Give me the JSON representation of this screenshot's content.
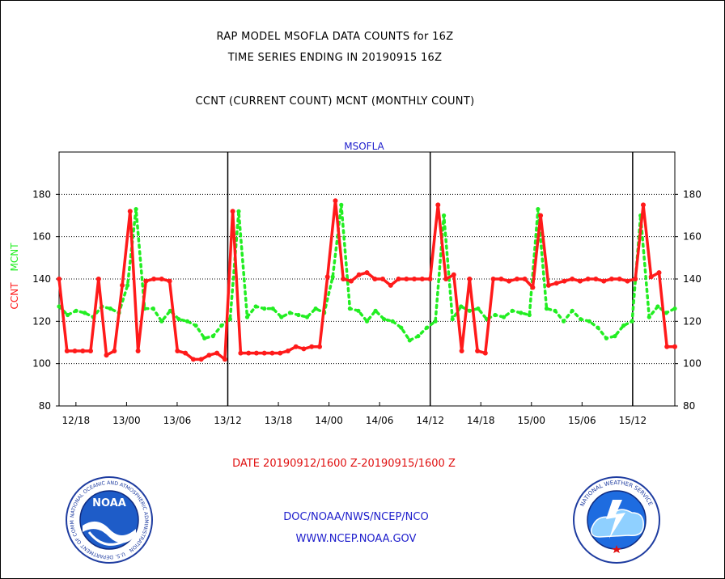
{
  "header": {
    "line1": "RAP MODEL MSOFLA DATA COUNTS for 16Z",
    "line2": "TIME SERIES ENDING IN 20190915 16Z",
    "line3": "CCNT (CURRENT COUNT) MCNT (MONTHLY COUNT)"
  },
  "footer": {
    "date_range": "DATE 20190912/1600 Z-20190915/1600 Z",
    "org_line": "DOC/NOAA/NWS/NCEP/NCO",
    "url_line": "WWW.NCEP.NOAA.GOV"
  },
  "logos": {
    "noaa_text": "NOAA",
    "noaa_ring_text": "NATIONAL OCEANIC AND ATMOSPHERIC ADMINISTRATION",
    "noaa_ring_bottom": "U.S. DEPARTMENT OF COMMERCE",
    "nws_ring_text": "NATIONAL WEATHER SERVICE"
  },
  "chart_data": {
    "type": "line",
    "title": "MSOFLA",
    "ylabel_parts": [
      "CCNT",
      "MCNT"
    ],
    "ylim": [
      80,
      200
    ],
    "yticks": [
      80,
      100,
      120,
      140,
      160,
      180
    ],
    "xlim": [
      0,
      73
    ],
    "xtick_hours": [
      2,
      8,
      14,
      20,
      26,
      32,
      38,
      44,
      50,
      56,
      62,
      68
    ],
    "xtick_labels": [
      "12/18",
      "13/00",
      "13/06",
      "13/12",
      "13/18",
      "14/00",
      "14/06",
      "14/12",
      "14/18",
      "15/00",
      "15/06",
      "15/12"
    ],
    "day_boundaries_hours": [
      20,
      44,
      68
    ],
    "grid": true,
    "colors": {
      "ccnt": "#ff1a1a",
      "mcnt": "#22ee22",
      "title": "#1e1ecc",
      "axes": "#000000"
    },
    "series": [
      {
        "name": "CCNT",
        "values": [
          140,
          106,
          106,
          106,
          106,
          140,
          104,
          106,
          137,
          172,
          106,
          139,
          140,
          140,
          139,
          106,
          105,
          102,
          102,
          104,
          105,
          102,
          172,
          105,
          105,
          105,
          105,
          105,
          105,
          106,
          108,
          107,
          108,
          108,
          141,
          177,
          140,
          139,
          142,
          143,
          140,
          140,
          137,
          140,
          140,
          140,
          140,
          140,
          175,
          140,
          142,
          106,
          140,
          106,
          105,
          140,
          140,
          139,
          140,
          140,
          136,
          170,
          137,
          138,
          139,
          140,
          139,
          140,
          140,
          139,
          140,
          140,
          139,
          140,
          175,
          141,
          143,
          108,
          108
        ]
      },
      {
        "name": "MCNT",
        "values": [
          127,
          123,
          125,
          124,
          122,
          127,
          126,
          124,
          137,
          173,
          126,
          126,
          120,
          125,
          121,
          120,
          118,
          112,
          113,
          118,
          121,
          172,
          122,
          127,
          126,
          126,
          122,
          124,
          123,
          122,
          126,
          124,
          141,
          175,
          126,
          125,
          120,
          125,
          121,
          120,
          117,
          111,
          113,
          117,
          120,
          170,
          121,
          127,
          125,
          126,
          121,
          123,
          122,
          125,
          124,
          123,
          173,
          126,
          125,
          120,
          125,
          121,
          120,
          117,
          112,
          113,
          118,
          120,
          170,
          122,
          127,
          124,
          126
        ]
      }
    ]
  }
}
